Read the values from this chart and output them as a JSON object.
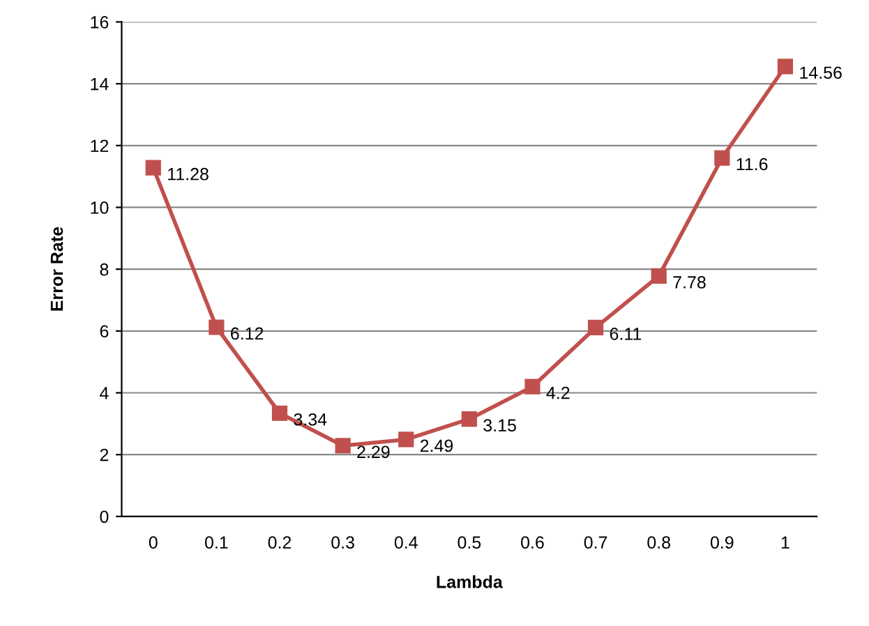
{
  "chart_data": {
    "type": "line",
    "xlabel": "Lambda",
    "ylabel": "Error Rate",
    "categories": [
      "0",
      "0.1",
      "0.2",
      "0.3",
      "0.4",
      "0.5",
      "0.6",
      "0.7",
      "0.8",
      "0.9",
      "1"
    ],
    "series": [
      {
        "color": "#c0504d",
        "values": [
          11.28,
          6.12,
          3.34,
          2.29,
          2.49,
          3.15,
          4.2,
          6.11,
          7.78,
          11.6,
          14.56
        ]
      }
    ],
    "ylim": [
      0,
      16
    ],
    "yticks": [
      0,
      2,
      4,
      6,
      8,
      10,
      12,
      14,
      16
    ],
    "grid": "y",
    "marker": "square",
    "line_style": "solid",
    "data_labels": true
  }
}
